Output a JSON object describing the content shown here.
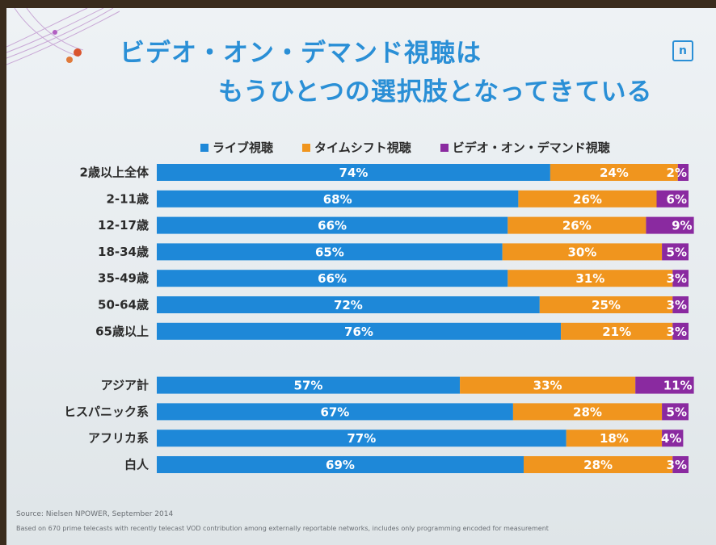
{
  "slide": {
    "title_line1": "ビデオ・オン・デマンド視聴は",
    "title_line2": "もうひとつの選択肢となってきている",
    "logo_glyph": "n",
    "source": "Source:  Nielsen NPOWER, September 2014",
    "note": "Based on 670 prime telecasts with recently telecast VOD contribution among externally reportable networks, includes only programming encoded for measurement"
  },
  "colors": {
    "live": "#1e88d8",
    "timeshift": "#f0951e",
    "vod": "#8a2aa0",
    "title": "#2a8fd6"
  },
  "chart_data": {
    "type": "bar",
    "orientation": "horizontal",
    "stacked": true,
    "value_unit": "%",
    "xlim": [
      0,
      100
    ],
    "legend_position": "top",
    "categories": [
      "2歳以上全体",
      "2-11歳",
      "12-17歳",
      "18-34歳",
      "35-49歳",
      "50-64歳",
      "65歳以上",
      "アジア計",
      "ヒスパニック系",
      "アフリカ系",
      "白人"
    ],
    "group_break_after": 6,
    "series": [
      {
        "name": "ライブ視聴",
        "color": "#1e88d8",
        "values": [
          74,
          68,
          66,
          65,
          66,
          72,
          76,
          57,
          67,
          77,
          69
        ]
      },
      {
        "name": "タイムシフト視聴",
        "color": "#f0951e",
        "values": [
          24,
          26,
          26,
          30,
          31,
          25,
          21,
          33,
          28,
          18,
          28
        ]
      },
      {
        "name": "ビデオ・オン・デマンド視聴",
        "color": "#8a2aa0",
        "values": [
          2,
          6,
          9,
          5,
          3,
          3,
          3,
          11,
          5,
          4,
          3
        ]
      }
    ]
  }
}
